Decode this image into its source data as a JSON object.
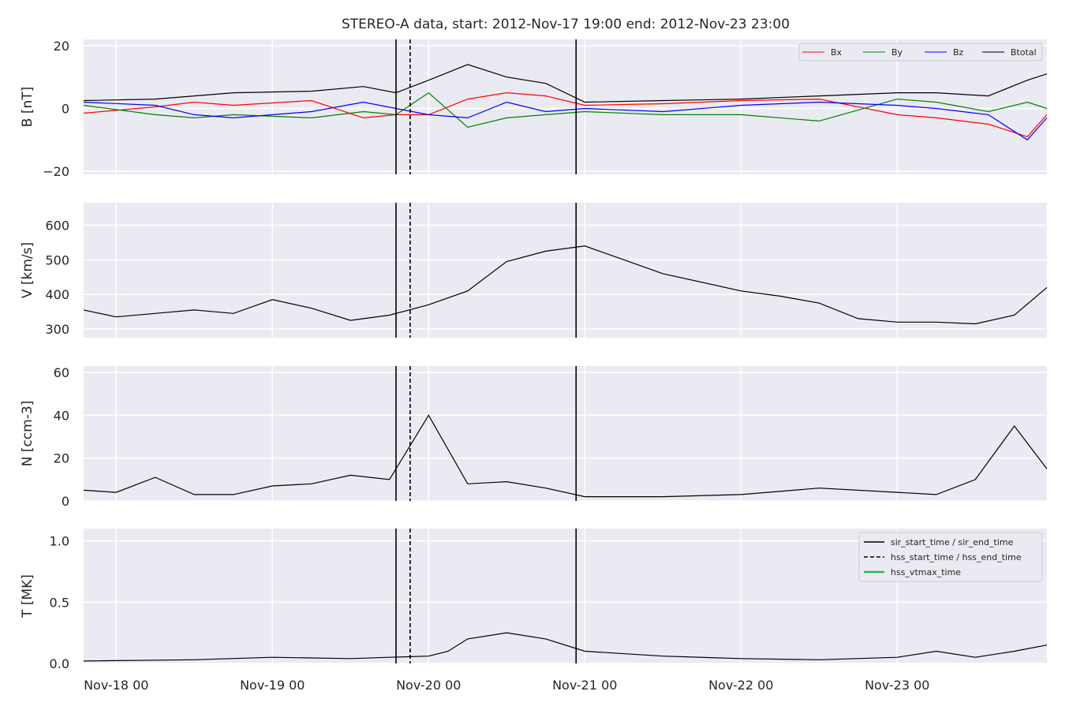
{
  "title": "STEREO-A data, start: 2012-Nov-17 19:00  end: 2012-Nov-23 23:00",
  "x_ticks": [
    "Nov-18 00",
    "Nov-19 00",
    "Nov-20 00",
    "Nov-21 00",
    "Nov-22 00",
    "Nov-23 00"
  ],
  "event_markers": {
    "sir_start_time": "2012-Nov-19 19:00",
    "hss_start_time": "2012-Nov-19 21:10",
    "sir_end_time": "2012-Nov-20 22:40"
  },
  "chart_data": [
    {
      "type": "line",
      "panel": "B",
      "ylabel": "B [nT]",
      "ylim": [
        -21,
        22
      ],
      "yticks": [
        "−20",
        "0",
        "20"
      ],
      "grid": true,
      "legend_placement": "top-right",
      "series": [
        {
          "name": "Bx",
          "color": "#ff0000",
          "x": [
            "11-17 19:00",
            "11-18 06:00",
            "11-18 12:00",
            "11-18 18:00",
            "11-19 06:00",
            "11-19 14:00",
            "11-19 19:00",
            "11-20 00:00",
            "11-20 06:00",
            "11-20 12:00",
            "11-20 18:00",
            "11-21 00:00",
            "11-21 12:00",
            "11-22 00:00",
            "11-22 12:00",
            "11-23 00:00",
            "11-23 06:00",
            "11-23 14:00",
            "11-23 20:00",
            "11-23 23:00"
          ],
          "y": [
            -1.5,
            0.5,
            2,
            1,
            2.5,
            -3,
            -2,
            -2,
            3,
            5,
            4,
            1,
            1.5,
            2.5,
            3,
            -2,
            -3,
            -5,
            -9,
            -2
          ]
        },
        {
          "name": "By",
          "color": "#008000",
          "x": [
            "11-17 19:00",
            "11-18 06:00",
            "11-18 12:00",
            "11-18 18:00",
            "11-19 06:00",
            "11-19 14:00",
            "11-19 19:00",
            "11-20 00:00",
            "11-20 06:00",
            "11-20 12:00",
            "11-20 18:00",
            "11-21 00:00",
            "11-21 12:00",
            "11-22 00:00",
            "11-22 12:00",
            "11-23 00:00",
            "11-23 06:00",
            "11-23 14:00",
            "11-23 20:00",
            "11-23 23:00"
          ],
          "y": [
            1,
            -2,
            -3,
            -2,
            -3,
            -1,
            -2,
            5,
            -6,
            -3,
            -2,
            -1,
            -2,
            -2,
            -4,
            3,
            2,
            -1,
            2,
            0
          ]
        },
        {
          "name": "Bz",
          "color": "#0000ff",
          "x": [
            "11-17 19:00",
            "11-18 06:00",
            "11-18 12:00",
            "11-18 18:00",
            "11-19 06:00",
            "11-19 14:00",
            "11-19 19:00",
            "11-20 00:00",
            "11-20 06:00",
            "11-20 12:00",
            "11-20 18:00",
            "11-21 00:00",
            "11-21 12:00",
            "11-22 00:00",
            "11-22 12:00",
            "11-23 00:00",
            "11-23 06:00",
            "11-23 14:00",
            "11-23 20:00",
            "11-23 23:00"
          ],
          "y": [
            2,
            1,
            -2,
            -3,
            -1,
            2,
            0,
            -2,
            -3,
            2,
            -1,
            0,
            -1,
            1,
            2,
            1,
            0,
            -2,
            -10,
            -3
          ]
        },
        {
          "name": "Btotal",
          "color": "#000000",
          "x": [
            "11-17 19:00",
            "11-18 06:00",
            "11-18 12:00",
            "11-18 18:00",
            "11-19 06:00",
            "11-19 14:00",
            "11-19 19:00",
            "11-20 00:00",
            "11-20 06:00",
            "11-20 12:00",
            "11-20 18:00",
            "11-21 00:00",
            "11-21 12:00",
            "11-22 00:00",
            "11-22 12:00",
            "11-23 00:00",
            "11-23 06:00",
            "11-23 14:00",
            "11-23 20:00",
            "11-23 23:00"
          ],
          "y": [
            2.5,
            3,
            4,
            5,
            5.5,
            7,
            5,
            9,
            14,
            10,
            8,
            2,
            2.5,
            3,
            4,
            5,
            5,
            4,
            9,
            11
          ]
        }
      ]
    },
    {
      "type": "line",
      "panel": "V",
      "ylabel": "V [km/s]",
      "ylim": [
        275,
        665
      ],
      "yticks": [
        "300",
        "400",
        "500",
        "600"
      ],
      "grid": true,
      "series": [
        {
          "name": "V",
          "color": "#000000",
          "x": [
            "11-17 19:00",
            "11-18 00:00",
            "11-18 06:00",
            "11-18 12:00",
            "11-18 18:00",
            "11-19 00:00",
            "11-19 06:00",
            "11-19 12:00",
            "11-19 18:00",
            "11-20 00:00",
            "11-20 06:00",
            "11-20 12:00",
            "11-20 18:00",
            "11-21 00:00",
            "11-21 06:00",
            "11-21 12:00",
            "11-22 00:00",
            "11-22 06:00",
            "11-22 12:00",
            "11-22 18:00",
            "11-23 00:00",
            "11-23 06:00",
            "11-23 12:00",
            "11-23 18:00",
            "11-23 23:00"
          ],
          "y": [
            355,
            335,
            345,
            355,
            345,
            385,
            360,
            325,
            340,
            370,
            410,
            495,
            525,
            540,
            500,
            460,
            410,
            395,
            375,
            330,
            320,
            320,
            315,
            340,
            420
          ]
        }
      ]
    },
    {
      "type": "line",
      "panel": "N",
      "ylabel": "N [ccm-3]",
      "ylim": [
        0,
        63
      ],
      "yticks": [
        "0",
        "20",
        "40",
        "60"
      ],
      "grid": true,
      "series": [
        {
          "name": "N",
          "color": "#000000",
          "x": [
            "11-17 19:00",
            "11-18 00:00",
            "11-18 06:00",
            "11-18 12:00",
            "11-18 18:00",
            "11-19 00:00",
            "11-19 06:00",
            "11-19 12:00",
            "11-19 18:00",
            "11-20 00:00",
            "11-20 06:00",
            "11-20 12:00",
            "11-20 18:00",
            "11-21 00:00",
            "11-21 06:00",
            "11-21 12:00",
            "11-22 00:00",
            "11-22 12:00",
            "11-23 00:00",
            "11-23 06:00",
            "11-23 12:00",
            "11-23 18:00",
            "11-23 23:00"
          ],
          "y": [
            5,
            4,
            11,
            3,
            3,
            7,
            8,
            12,
            10,
            40,
            8,
            9,
            6,
            2,
            2,
            2,
            3,
            6,
            4,
            3,
            10,
            35,
            15
          ]
        }
      ]
    },
    {
      "type": "line",
      "panel": "T",
      "ylabel": "T [MK]",
      "ylim": [
        0,
        1.1
      ],
      "yticks": [
        "0.0",
        "0.5",
        "1.0"
      ],
      "grid": true,
      "legend_placement": "top-right",
      "series": [
        {
          "name": "T",
          "color": "#000000",
          "x": [
            "11-17 19:00",
            "11-18 12:00",
            "11-19 00:00",
            "11-19 12:00",
            "11-19 18:00",
            "11-20 00:00",
            "11-20 03:00",
            "11-20 06:00",
            "11-20 12:00",
            "11-20 18:00",
            "11-21 00:00",
            "11-21 12:00",
            "11-22 00:00",
            "11-22 12:00",
            "11-23 00:00",
            "11-23 06:00",
            "11-23 12:00",
            "11-23 18:00",
            "11-23 23:00"
          ],
          "y": [
            0.02,
            0.03,
            0.05,
            0.04,
            0.05,
            0.06,
            0.1,
            0.2,
            0.25,
            0.2,
            0.1,
            0.06,
            0.04,
            0.03,
            0.05,
            0.1,
            0.05,
            0.1,
            0.15
          ]
        }
      ],
      "legend_entries": [
        {
          "label": "sir_start_time / sir_end_time",
          "style": "solid",
          "color": "#000000"
        },
        {
          "label": "hss_start_time / hss_end_time",
          "style": "dashed",
          "color": "#000000"
        },
        {
          "label": "hss_vtmax_time",
          "style": "solid",
          "color": "#2db84d"
        }
      ]
    }
  ]
}
